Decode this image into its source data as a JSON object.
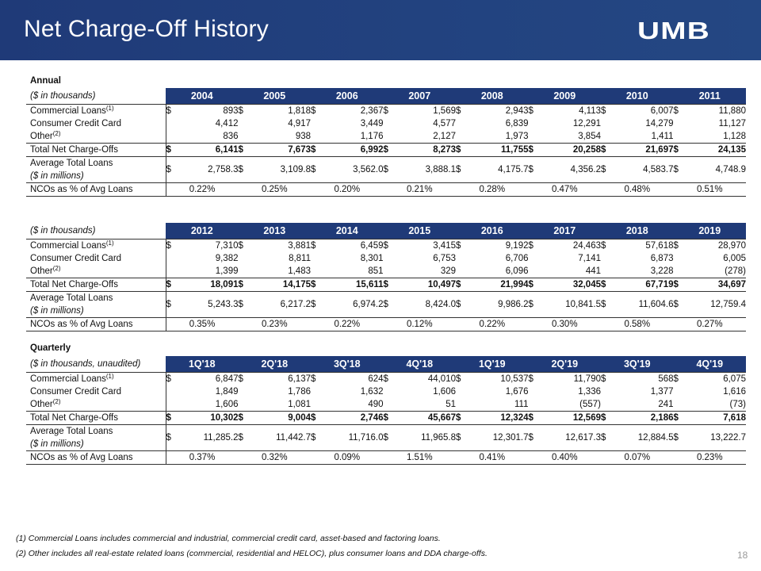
{
  "title": "Net Charge-Off History",
  "logo_text": "UMB",
  "page_number": "18",
  "annual_label": "Annual",
  "quarterly_label": "Quarterly",
  "footnotes": [
    "(1)  Commercial Loans includes commercial and industrial, commercial credit card, asset-based and factoring loans.",
    "(2)  Other includes all real-estate related loans (commercial, residential and HELOC), plus consumer loans and DDA charge-offs."
  ],
  "row_labels": {
    "commercial": "Commercial Loans",
    "commercial_note": "(1)",
    "consumer": "Consumer Credit Card",
    "other": "Other",
    "other_note": "(2)",
    "total": "Total Net Charge-Offs",
    "avg_line1": "Average Total Loans",
    "avg_line2": "($ in millions)",
    "ncos": "NCOs as % of Avg Loans"
  },
  "tables": [
    {
      "unit_label": "($ in thousands)",
      "periods": [
        "2004",
        "2005",
        "2006",
        "2007",
        "2008",
        "2009",
        "2010",
        "2011"
      ],
      "commercial": [
        "893",
        "1,818",
        "2,367",
        "1,569",
        "2,943",
        "4,113",
        "6,007",
        "11,880"
      ],
      "consumer": [
        "4,412",
        "4,917",
        "3,449",
        "4,577",
        "6,839",
        "12,291",
        "14,279",
        "11,127"
      ],
      "other": [
        "836",
        "938",
        "1,176",
        "2,127",
        "1,973",
        "3,854",
        "1,411",
        "1,128"
      ],
      "total": [
        "6,141",
        "7,673",
        "6,992",
        "8,273",
        "11,755",
        "20,258",
        "21,697",
        "24,135"
      ],
      "avg": [
        "2,758.3",
        "3,109.8",
        "3,562.0",
        "3,888.1",
        "4,175.7",
        "4,356.2",
        "4,583.7",
        "4,748.9"
      ],
      "ncos": [
        "0.22%",
        "0.25%",
        "0.20%",
        "0.21%",
        "0.28%",
        "0.47%",
        "0.48%",
        "0.51%"
      ]
    },
    {
      "unit_label": "($ in thousands)",
      "periods": [
        "2012",
        "2013",
        "2014",
        "2015",
        "2016",
        "2017",
        "2018",
        "2019"
      ],
      "commercial": [
        "7,310",
        "3,881",
        "6,459",
        "3,415",
        "9,192",
        "24,463",
        "57,618",
        "28,970"
      ],
      "consumer": [
        "9,382",
        "8,811",
        "8,301",
        "6,753",
        "6,706",
        "7,141",
        "6,873",
        "6,005"
      ],
      "other": [
        "1,399",
        "1,483",
        "851",
        "329",
        "6,096",
        "441",
        "3,228",
        "(278)"
      ],
      "total": [
        "18,091",
        "14,175",
        "15,611",
        "10,497",
        "21,994",
        "32,045",
        "67,719",
        "34,697"
      ],
      "avg": [
        "5,243.3",
        "6,217.2",
        "6,974.2",
        "8,424.0",
        "9,986.2",
        "10,841.5",
        "11,604.6",
        "12,759.4"
      ],
      "ncos": [
        "0.35%",
        "0.23%",
        "0.22%",
        "0.12%",
        "0.22%",
        "0.30%",
        "0.58%",
        "0.27%"
      ]
    },
    {
      "unit_label": "($ in thousands, unaudited)",
      "periods": [
        "1Q'18",
        "2Q'18",
        "3Q'18",
        "4Q'18",
        "1Q'19",
        "2Q'19",
        "3Q'19",
        "4Q'19"
      ],
      "commercial": [
        "6,847",
        "6,137",
        "624",
        "44,010",
        "10,537",
        "11,790",
        "568",
        "6,075"
      ],
      "consumer": [
        "1,849",
        "1,786",
        "1,632",
        "1,606",
        "1,676",
        "1,336",
        "1,377",
        "1,616"
      ],
      "other": [
        "1,606",
        "1,081",
        "490",
        "51",
        "111",
        "(557)",
        "241",
        "(73)"
      ],
      "total": [
        "10,302",
        "9,004",
        "2,746",
        "45,667",
        "12,324",
        "12,569",
        "2,186",
        "7,618"
      ],
      "avg": [
        "11,285.2",
        "11,442.7",
        "11,716.0",
        "11,965.8",
        "12,301.7",
        "12,617.3",
        "12,884.5",
        "13,222.7"
      ],
      "ncos": [
        "0.37%",
        "0.32%",
        "0.09%",
        "1.51%",
        "0.41%",
        "0.40%",
        "0.07%",
        "0.23%"
      ]
    }
  ]
}
